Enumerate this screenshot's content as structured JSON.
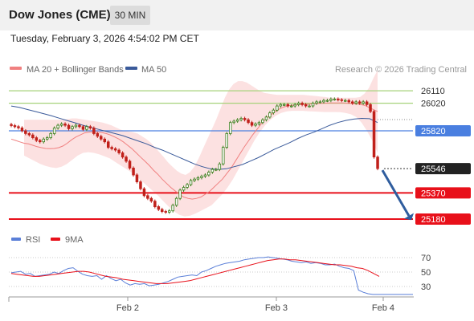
{
  "header": {
    "title": "Dow Jones (CME)",
    "timeframe": "30 MIN",
    "datetime": "Tuesday, February 3, 2026 4:54:02 PM CET"
  },
  "legend": {
    "ma20": "MA 20 + Bollinger Bands",
    "ma50": "MA 50",
    "credit": "Research © 2026 Trading Central"
  },
  "rsi_legend": {
    "rsi": "RSI",
    "ma9": "9MA"
  },
  "colors": {
    "bollinger_fill": "#fcdcdc",
    "ma20": "#f08080",
    "ma50": "#3a5a9a",
    "resistance": "#a6d27a",
    "pivot": "#4a7fe0",
    "support": "#e8101a",
    "arrow": "#2f5d9e",
    "candle_up": "#3a7d1a",
    "candle_down": "#c0201a",
    "rsi": "#5a7fd8",
    "rsi_ma": "#e8101a"
  },
  "chart_data": [
    {
      "type": "candlestick",
      "ylim": [
        25150,
        26310
      ],
      "x_ticks": [
        "Feb 2",
        "Feb 3",
        "Feb 4"
      ],
      "levels": [
        {
          "value": 26110,
          "label": "26110",
          "kind": "resistance"
        },
        {
          "value": 26020,
          "label": "26020",
          "kind": "resistance"
        },
        {
          "value": 25820,
          "label": "25820",
          "kind": "pivot"
        },
        {
          "value": 25546,
          "label": "25546",
          "kind": "last"
        },
        {
          "value": 25370,
          "label": "25370",
          "kind": "support"
        },
        {
          "value": 25180,
          "label": "25180",
          "kind": "support"
        }
      ],
      "close": [
        25858,
        25850,
        25841,
        25820,
        25800,
        25790,
        25770,
        25750,
        25740,
        25760,
        25770,
        25800,
        25840,
        25860,
        25870,
        25860,
        25835,
        25850,
        25860,
        25850,
        25830,
        25850,
        25840,
        25800,
        25780,
        25760,
        25740,
        25700,
        25690,
        25680,
        25660,
        25630,
        25600,
        25550,
        25500,
        25450,
        25400,
        25350,
        25330,
        25310,
        25270,
        25250,
        25235,
        25230,
        25240,
        25280,
        25330,
        25390,
        25410,
        25430,
        25460,
        25470,
        25480,
        25490,
        25500,
        25520,
        25540,
        25540,
        25580,
        25700,
        25800,
        25880,
        25890,
        25900,
        25910,
        25900,
        25880,
        25860,
        25870,
        25880,
        25900,
        25920,
        25950,
        25970,
        26000,
        26010,
        26010,
        26000,
        26000,
        26010,
        26020,
        26010,
        26000,
        26000,
        26020,
        26030,
        26030,
        26040,
        26040,
        26050,
        26050,
        26045,
        26040,
        26040,
        26030,
        26020,
        26030,
        26020,
        26030,
        26010,
        25960,
        25630,
        25546
      ],
      "ma20": [
        25760,
        25750,
        25740,
        25730,
        25725,
        25715,
        25705,
        25698,
        25692,
        25690,
        25692,
        25698,
        25710,
        25730,
        25755,
        25775,
        25790,
        25805,
        25810,
        25812,
        25810,
        25808,
        25800,
        25790,
        25775,
        25760,
        25740,
        25715,
        25690,
        25660,
        25630,
        25600,
        25570,
        25535,
        25505,
        25470,
        25440,
        25410,
        25385,
        25360,
        25340,
        25330,
        25325,
        25330,
        25340,
        25360,
        25380,
        25410,
        25440,
        25470,
        25510,
        25550,
        25600,
        25650,
        25700,
        25745,
        25790,
        25830,
        25870,
        25905,
        25930,
        25955,
        25975,
        25990,
        26000,
        26005,
        26008,
        26010,
        26012,
        26014,
        26016,
        26018,
        26020,
        26021,
        26022,
        26022,
        26022,
        26022,
        26020,
        26018,
        26015,
        26010,
        26005,
        25990,
        25975,
        25960
      ],
      "bb_upper": [
        25900,
        25900,
        25900,
        25900,
        25900,
        25900,
        25900,
        25900,
        25900,
        25900,
        25905,
        25910,
        25910,
        25905,
        25900,
        25895,
        25890,
        25885,
        25880,
        25870,
        25860,
        25845,
        25830,
        25820,
        25815,
        25810,
        25800,
        25780,
        25760,
        25735,
        25700,
        25665,
        25630,
        25590,
        25560,
        25530,
        25510,
        25500,
        25520,
        25560,
        25620,
        25690,
        25760,
        25830,
        25900,
        25980,
        26060,
        26120,
        26160,
        26180,
        26180,
        26170,
        26150,
        26130,
        26110,
        26095,
        26090,
        26085,
        26080,
        26080,
        26080,
        26080,
        26080,
        26080,
        26080,
        26078,
        26075,
        26072,
        26068,
        26065,
        26060,
        26060,
        26060,
        26060,
        26060,
        26060,
        26060,
        26065,
        26090,
        26130,
        26200,
        26260
      ],
      "bb_lower": [
        25640,
        25620,
        25600,
        25580,
        25565,
        25555,
        25550,
        25560,
        25580,
        25610,
        25640,
        25660,
        25665,
        25660,
        25650,
        25635,
        25620,
        25595,
        25570,
        25545,
        25520,
        25490,
        25455,
        25420,
        25385,
        25350,
        25310,
        25270,
        25235,
        25210,
        25200,
        25205,
        25220,
        25240,
        25260,
        25280,
        25320,
        25360,
        25410,
        25470,
        25540,
        25610,
        25680,
        25750,
        25810,
        25860,
        25900,
        25930,
        25950,
        25960,
        25965,
        25965,
        25965,
        25962,
        25960,
        25958,
        25956,
        25956,
        25956,
        25955,
        25950,
        25940,
        25920,
        25880,
        25820,
        25750,
        25660
      ],
      "ma50": [
        26000,
        25990,
        25975,
        25960,
        25945,
        25930,
        25912,
        25895,
        25878,
        25860,
        25845,
        25830,
        25815,
        25800,
        25785,
        25765,
        25745,
        25725,
        25700,
        25680,
        25655,
        25630,
        25605,
        25580,
        25560,
        25545,
        25540,
        25545,
        25560,
        25575,
        25600,
        25625,
        25655,
        25685,
        25710,
        25735,
        25765,
        25790,
        25810,
        25835,
        25860,
        25880,
        25895,
        25905,
        25910,
        25908,
        25880
      ],
      "annotation": "projected move from 25546 toward 25180"
    },
    {
      "type": "line",
      "ylim": [
        20,
        80
      ],
      "yticks": [
        70,
        50,
        30
      ],
      "series": [
        {
          "name": "RSI",
          "values": [
            49,
            50,
            51,
            47,
            48,
            44,
            45,
            46,
            47,
            50,
            48,
            52,
            55,
            56,
            51,
            47,
            45,
            44,
            45,
            40,
            45,
            41,
            38,
            40,
            35,
            32,
            34,
            33,
            34,
            31,
            32,
            33,
            35,
            37,
            40,
            43,
            44,
            45,
            46,
            45,
            50,
            52,
            55,
            58,
            60,
            62,
            63,
            64,
            65,
            67,
            68,
            69,
            70,
            70,
            71,
            70,
            69,
            68,
            67,
            65,
            64,
            63,
            64,
            62,
            63,
            62,
            60,
            60,
            61,
            58,
            56,
            55,
            52,
            25,
            22,
            20,
            19
          ]
        },
        {
          "name": "9MA",
          "values": [
            48,
            47,
            46,
            45,
            44,
            44,
            45,
            46,
            47,
            48,
            49,
            50,
            51,
            51,
            50,
            48,
            46,
            44,
            43,
            42,
            40,
            39,
            38,
            37,
            36,
            35,
            34,
            34,
            34,
            35,
            36,
            37,
            38,
            40,
            42,
            44,
            46,
            48,
            50,
            52,
            54,
            56,
            58,
            60,
            62,
            64,
            66,
            67,
            68,
            68,
            67,
            67,
            66,
            65,
            64,
            63,
            62,
            61,
            60,
            60,
            59,
            58,
            56,
            55,
            52,
            48,
            44
          ]
        }
      ]
    }
  ]
}
